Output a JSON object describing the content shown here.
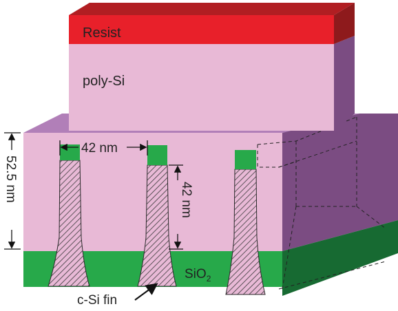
{
  "labels": {
    "resist": "Resist",
    "poly_si": "poly-Si",
    "dim_fin_pitch": "42 nm",
    "dim_fin_height": "42 nm",
    "dim_total_height": "52.5 nm",
    "sio2_main": "SiO",
    "sio2_sub": "2",
    "fin_label": "c-Si fin"
  },
  "colors": {
    "resist_front": "#e8202a",
    "resist_top": "#b11e22",
    "resist_side": "#8e1a1c",
    "poly_front": "#e8b9d6",
    "poly_top": "#b17fb8",
    "poly_side": "#7b4c82",
    "oxide_front": "#27a94a",
    "oxide_side": "#176a32",
    "fin_hatch": "#3a3a3a"
  }
}
